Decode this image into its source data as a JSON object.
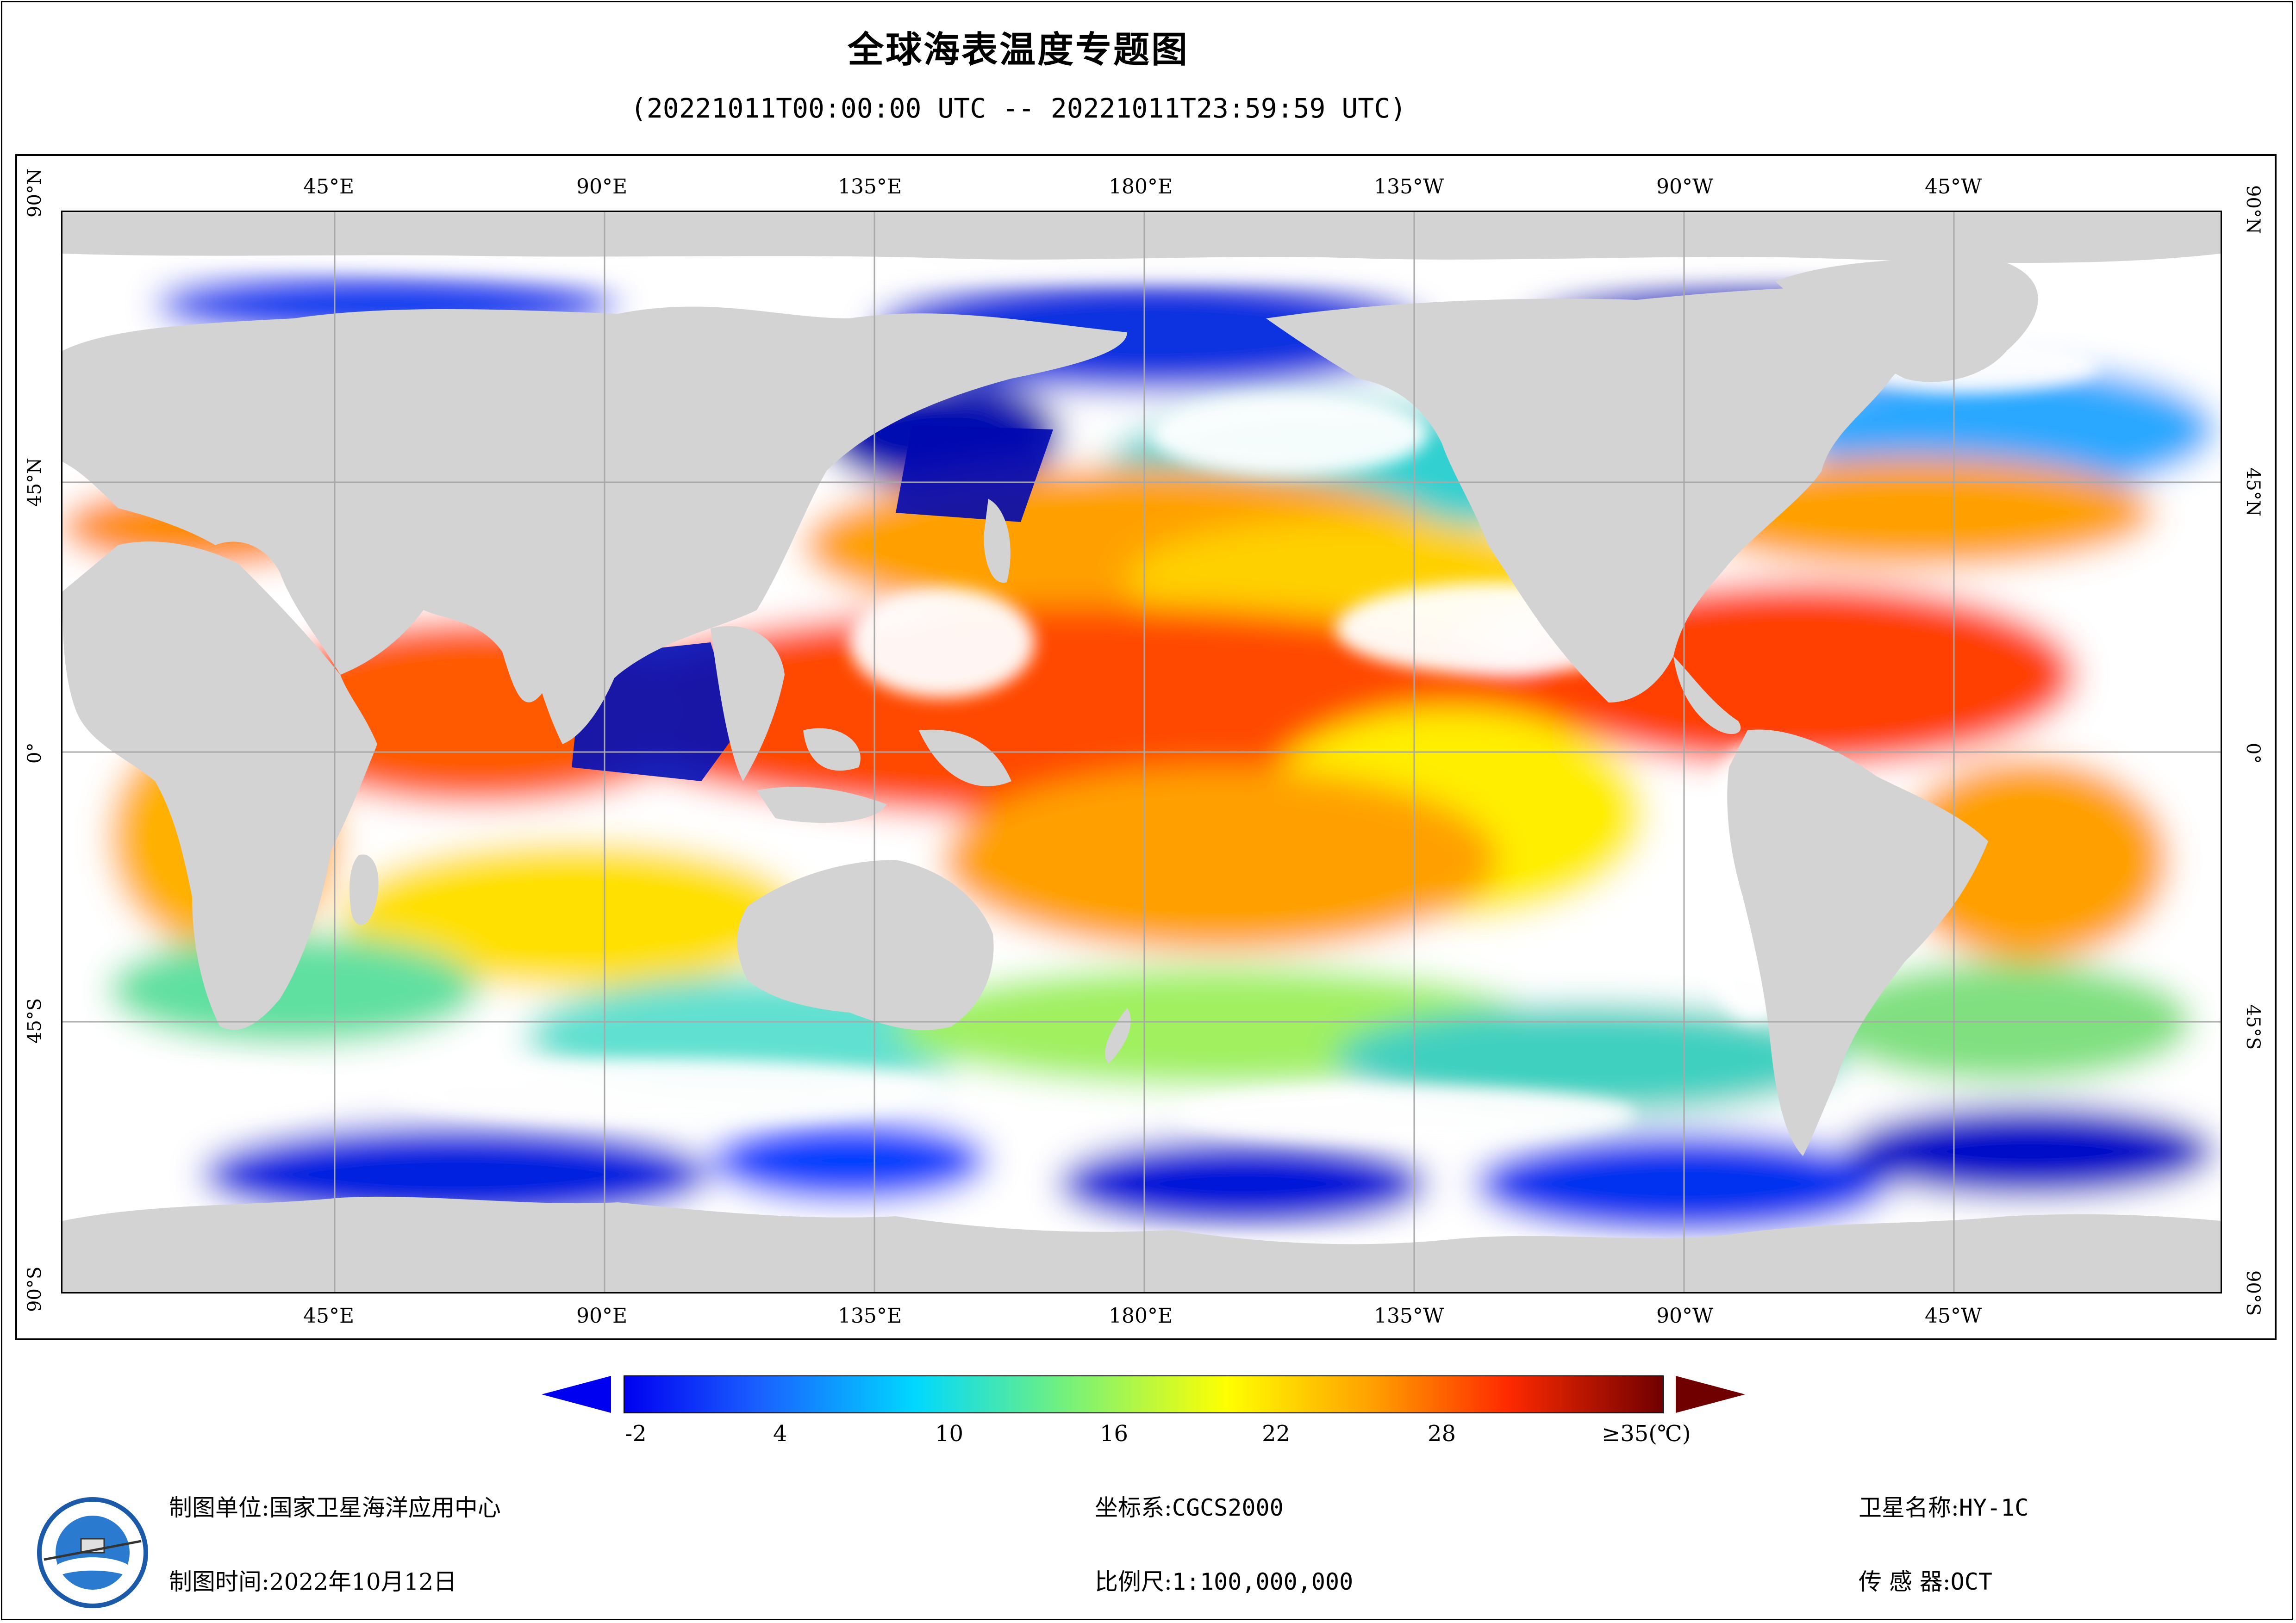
{
  "header": {
    "title": "全球海表温度专题图",
    "subtitle": "(20221011T00:00:00 UTC -- 20221011T23:59:59 UTC)"
  },
  "map": {
    "top_lon_labels": [
      "45°E",
      "90°E",
      "135°E",
      "180°E",
      "135°W",
      "90°W",
      "45°W"
    ],
    "bottom_lon_labels": [
      "45°E",
      "90°E",
      "135°E",
      "180°E",
      "135°W",
      "90°W",
      "45°W"
    ],
    "lat_labels": [
      "90°N",
      "45°N",
      "0°",
      "45°S",
      "90°S"
    ]
  },
  "colorbar": {
    "ticks": [
      "-2",
      "4",
      "10",
      "16",
      "22",
      "28"
    ],
    "max_label": "≥35(℃)",
    "min_value": -2,
    "max_value": 35
  },
  "footer": {
    "unit_label": "制图单位:国家卫星海洋应用中心",
    "time_label": "制图时间:2022年10月12日",
    "crs_label": "坐标系:",
    "crs_value": "CGCS2000",
    "scale_label": "比例尺:",
    "scale_value": "1:100,000,000",
    "satellite_label": "卫星名称:",
    "satellite_value": "HY-1C",
    "sensor_label": "传 感 器:",
    "sensor_value": "OCT"
  },
  "colors": {
    "land": "#d3d3d3",
    "no_data": "#ffffff",
    "cold": "#0000ff",
    "warm": "#ff3300",
    "grid": "#aaaaaa"
  }
}
